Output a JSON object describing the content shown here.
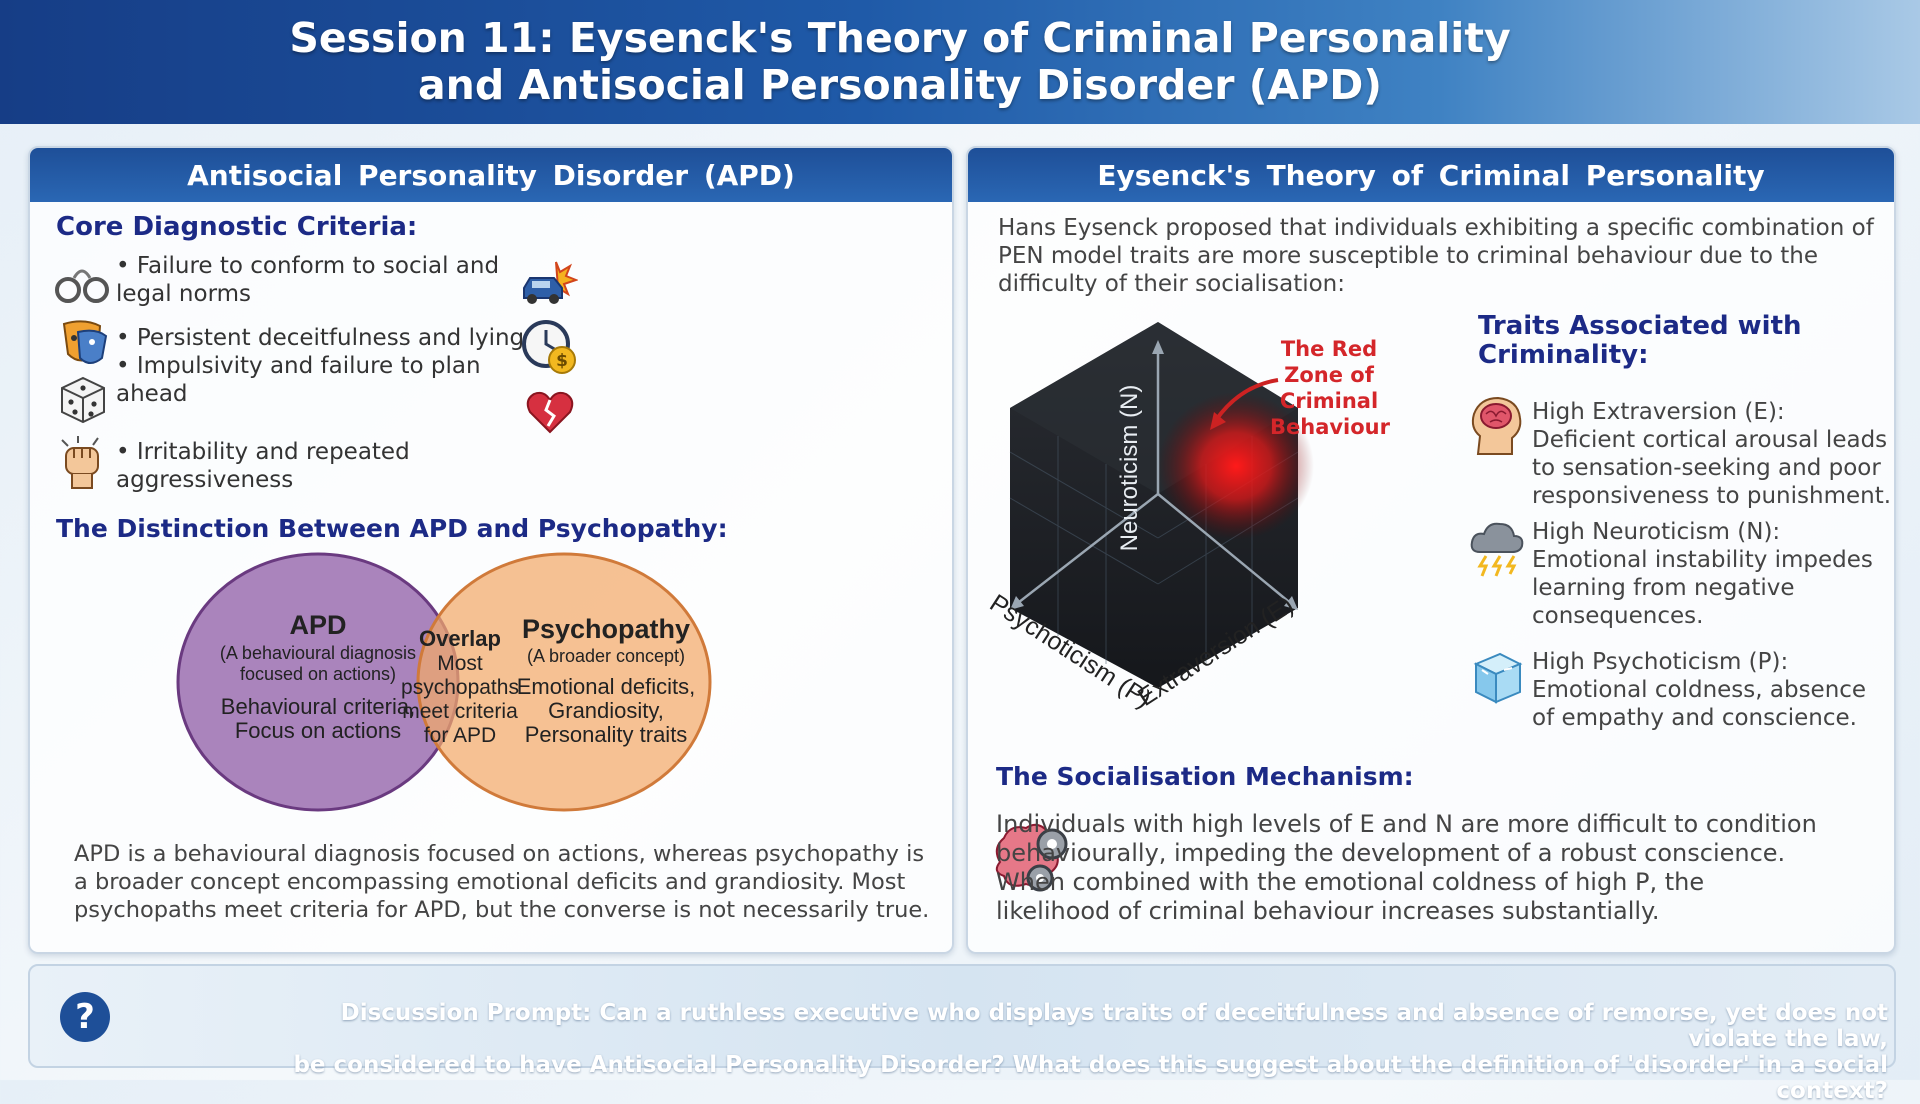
{
  "header": {
    "title_line1": "Session 11: Eysenck's Theory of Criminal Personality",
    "title_line2": "and Antisocial Personality Disorder (APD)"
  },
  "left_panel": {
    "title": "Antisocial Personality Disorder (APD)",
    "criteria_heading": "Core Diagnostic Criteria:",
    "criteria": [
      {
        "line1": "• Failure to conform to social and",
        "line2": "legal norms",
        "icon": "handcuffs-icon"
      },
      {
        "line1": "• Persistent deceitfulness and lying",
        "line2": "",
        "icon": "mask-icon"
      },
      {
        "line1": "• Impulsivity and failure to plan",
        "line2": "ahead",
        "icon": "dice-icon"
      },
      {
        "line1": "• Irritability and repeated",
        "line2": "aggressiveness",
        "icon": "fist-icon"
      }
    ],
    "side_icons": [
      "car-crash-icon",
      "clock-money-icon",
      "broken-heart-icon"
    ],
    "distinction_heading": "The Distinction Between APD and Psychopathy:",
    "venn": {
      "apd_title": "APD",
      "apd_sub1": "(A behavioural diagnosis",
      "apd_sub2": "focused on actions)",
      "apd_body1": "Behavioural criteria,",
      "apd_body2": "Focus on actions",
      "overlap_title": "Overlap",
      "overlap_1": "Most",
      "overlap_2": "psychopaths",
      "overlap_3": "meet criteria",
      "overlap_4": "for APD",
      "psy_title": "Psychopathy",
      "psy_sub": "(A broader concept)",
      "psy_body1": "Emotional deficits,",
      "psy_body2": "Grandiosity,",
      "psy_body3": "Personality traits",
      "colors": {
        "apd": "#9b6fb0",
        "psychopathy": "#f2a96a",
        "overlap": "#d98a6a"
      }
    },
    "summary": [
      "APD is a behavioural diagnosis focused on actions, whereas psychopathy is",
      "a broader concept encompassing emotional deficits and grandiosity. Most",
      "psychopaths meet criteria for APD, but the converse is not necessarily true."
    ]
  },
  "right_panel": {
    "title": "Eysenck's Theory of Criminal Personality",
    "intro": [
      "Hans Eysenck proposed that individuals exhibiting a specific combination of",
      "PEN model traits are more susceptible to criminal behaviour due to the",
      "difficulty of their socialisation:"
    ],
    "cube": {
      "axis_n": "Neuroticism (N)",
      "axis_p": "Psychoticism (P)",
      "axis_e": "Extraversion (E)",
      "red_zone": [
        "The Red",
        "Zone of",
        "Criminal",
        "Behaviour"
      ],
      "red_zone_color": "#d4262a"
    },
    "traits_heading_1": "Traits Associated with",
    "traits_heading_2": "Criminality:",
    "traits": [
      {
        "lines": [
          "High Extraversion (E):",
          "Deficient cortical arousal leads",
          "to sensation-seeking and poor",
          "responsiveness to punishment."
        ],
        "icon": "brain-head-icon"
      },
      {
        "lines": [
          "High Neuroticism (N):",
          "Emotional instability impedes",
          "learning from negative",
          "consequences."
        ],
        "icon": "storm-cloud-icon"
      },
      {
        "lines": [
          "High Psychoticism (P):",
          "Emotional coldness, absence",
          "of empathy and conscience."
        ],
        "icon": "ice-cube-icon"
      }
    ],
    "mechanism_heading": "The Socialisation Mechanism:",
    "mechanism": [
      "Individuals with high levels of E and N are more difficult to condition",
      "behaviourally, impeding the development of a robust conscience.",
      "When combined with the emotional coldness of high P, the",
      "likelihood of criminal behaviour increases substantially."
    ]
  },
  "footer": {
    "icon": "question-icon",
    "prompt_line1": "Discussion Prompt: Can a ruthless executive who displays traits of deceitfulness and absence of remorse, yet does not violate the law,",
    "prompt_line2": "be considered to have Antisocial Personality Disorder? What does this suggest about the definition of 'disorder' in a social context?"
  }
}
